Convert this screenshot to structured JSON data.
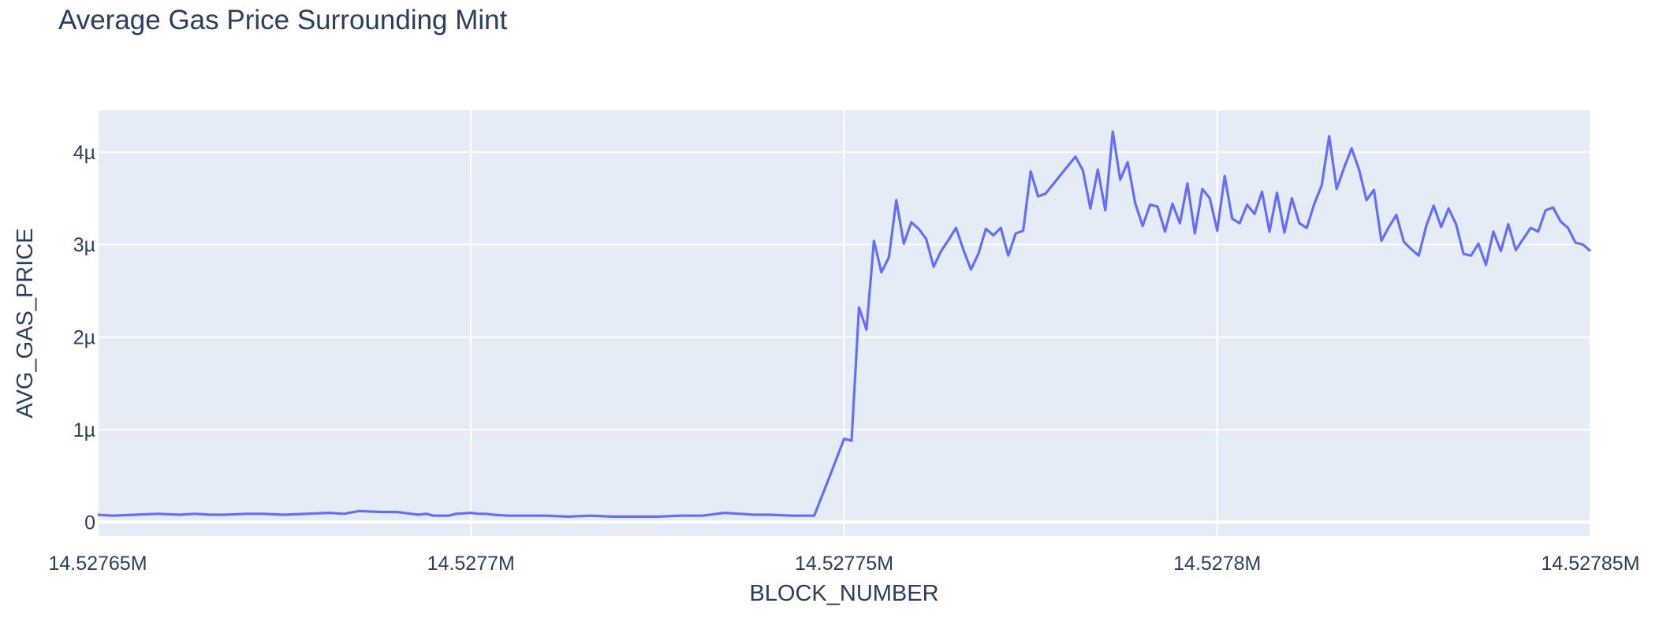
{
  "chart_data": {
    "type": "line",
    "title": "Average Gas Price Surrounding Mint",
    "xlabel": "BLOCK_NUMBER",
    "ylabel": "AVG_GAS_PRICE",
    "xlim": [
      14527650,
      14527850
    ],
    "ylim": [
      -0.15,
      4.45
    ],
    "x_ticks": [
      {
        "value": 14527650,
        "label": "14.52765M"
      },
      {
        "value": 14527700,
        "label": "14.5277M"
      },
      {
        "value": 14527750,
        "label": "14.52775M"
      },
      {
        "value": 14527800,
        "label": "14.5278M"
      },
      {
        "value": 14527850,
        "label": "14.52785M"
      }
    ],
    "y_ticks": [
      {
        "value": 0,
        "label": "0"
      },
      {
        "value": 1,
        "label": "1µ"
      },
      {
        "value": 2,
        "label": "2µ"
      },
      {
        "value": 3,
        "label": "3µ"
      },
      {
        "value": 4,
        "label": "4µ"
      }
    ],
    "grid": true,
    "colors": {
      "line": "#636efa",
      "plot_bg": "#e5ecf6",
      "grid": "#ffffff",
      "text": "#2a3f5f"
    },
    "series": [
      {
        "x": [
          14527650,
          14527652,
          14527655,
          14527658,
          14527661,
          14527663,
          14527665,
          14527667,
          14527670,
          14527672,
          14527675,
          14527678,
          14527681,
          14527683,
          14527685,
          14527688,
          14527690,
          14527692,
          14527693,
          14527694,
          14527695,
          14527697,
          14527698,
          14527700,
          14527701,
          14527702,
          14527703,
          14527705,
          14527707,
          14527710,
          14527713,
          14527716,
          14527719,
          14527721,
          14527722,
          14527723,
          14527725,
          14527728,
          14527731,
          14527734,
          14527736,
          14527738,
          14527740,
          14527743,
          14527746,
          14527748,
          14527750,
          14527751,
          14527752,
          14527753,
          14527754,
          14527755,
          14527756,
          14527757,
          14527758,
          14527759,
          14527760,
          14527761,
          14527762,
          14527763,
          14527764,
          14527765,
          14527766,
          14527767,
          14527768,
          14527769,
          14527770,
          14527771,
          14527772,
          14527773,
          14527774,
          14527775,
          14527776,
          14527777,
          14527778,
          14527779,
          14527780,
          14527781,
          14527782,
          14527783,
          14527784,
          14527785,
          14527786,
          14527787,
          14527788,
          14527789,
          14527790,
          14527791,
          14527792,
          14527793,
          14527794,
          14527795,
          14527796,
          14527797,
          14527798,
          14527799,
          14527800,
          14527801,
          14527802,
          14527803,
          14527804,
          14527805,
          14527806,
          14527807,
          14527808,
          14527809,
          14527810,
          14527811,
          14527812,
          14527813,
          14527814,
          14527815,
          14527816,
          14527817,
          14527818,
          14527819,
          14527820,
          14527821,
          14527822,
          14527823,
          14527824,
          14527825,
          14527826,
          14527827,
          14527828,
          14527829,
          14527830,
          14527831,
          14527832,
          14527833,
          14527834,
          14527835,
          14527836,
          14527837,
          14527838,
          14527839,
          14527840,
          14527841,
          14527842,
          14527843,
          14527844,
          14527845,
          14527846,
          14527847,
          14527848,
          14527849,
          14527850
        ],
        "y": [
          0.08,
          0.07,
          0.08,
          0.09,
          0.08,
          0.09,
          0.08,
          0.08,
          0.09,
          0.09,
          0.08,
          0.09,
          0.1,
          0.09,
          0.12,
          0.11,
          0.11,
          0.09,
          0.08,
          0.09,
          0.07,
          0.07,
          0.09,
          0.1,
          0.09,
          0.09,
          0.08,
          0.07,
          0.07,
          0.07,
          0.06,
          0.07,
          0.06,
          0.06,
          0.06,
          0.06,
          0.06,
          0.07,
          0.07,
          0.1,
          0.09,
          0.08,
          0.08,
          0.07,
          0.07,
          0.48,
          0.9,
          0.88,
          2.32,
          2.08,
          3.04,
          2.7,
          2.86,
          3.48,
          3.01,
          3.24,
          3.17,
          3.06,
          2.76,
          2.93,
          3.05,
          3.18,
          2.94,
          2.73,
          2.9,
          3.17,
          3.1,
          3.18,
          2.88,
          3.12,
          3.15,
          3.79,
          3.52,
          3.55,
          3.65,
          3.75,
          3.85,
          3.95,
          3.8,
          3.39,
          3.81,
          3.37,
          4.22,
          3.7,
          3.89,
          3.45,
          3.2,
          3.43,
          3.41,
          3.14,
          3.44,
          3.23,
          3.66,
          3.12,
          3.6,
          3.5,
          3.15,
          3.74,
          3.28,
          3.23,
          3.43,
          3.33,
          3.57,
          3.14,
          3.56,
          3.13,
          3.5,
          3.23,
          3.18,
          3.44,
          3.64,
          4.17,
          3.6,
          3.83,
          4.04,
          3.81,
          3.48,
          3.59,
          3.04,
          3.19,
          3.32,
          3.03,
          2.95,
          2.88,
          3.2,
          3.42,
          3.19,
          3.39,
          3.22,
          2.9,
          2.88,
          3.01,
          2.78,
          3.14,
          2.93,
          3.22,
          2.94,
          3.06,
          3.18,
          3.14,
          3.37,
          3.4,
          3.25,
          3.18,
          3.02,
          3.0,
          2.93
        ]
      }
    ]
  }
}
